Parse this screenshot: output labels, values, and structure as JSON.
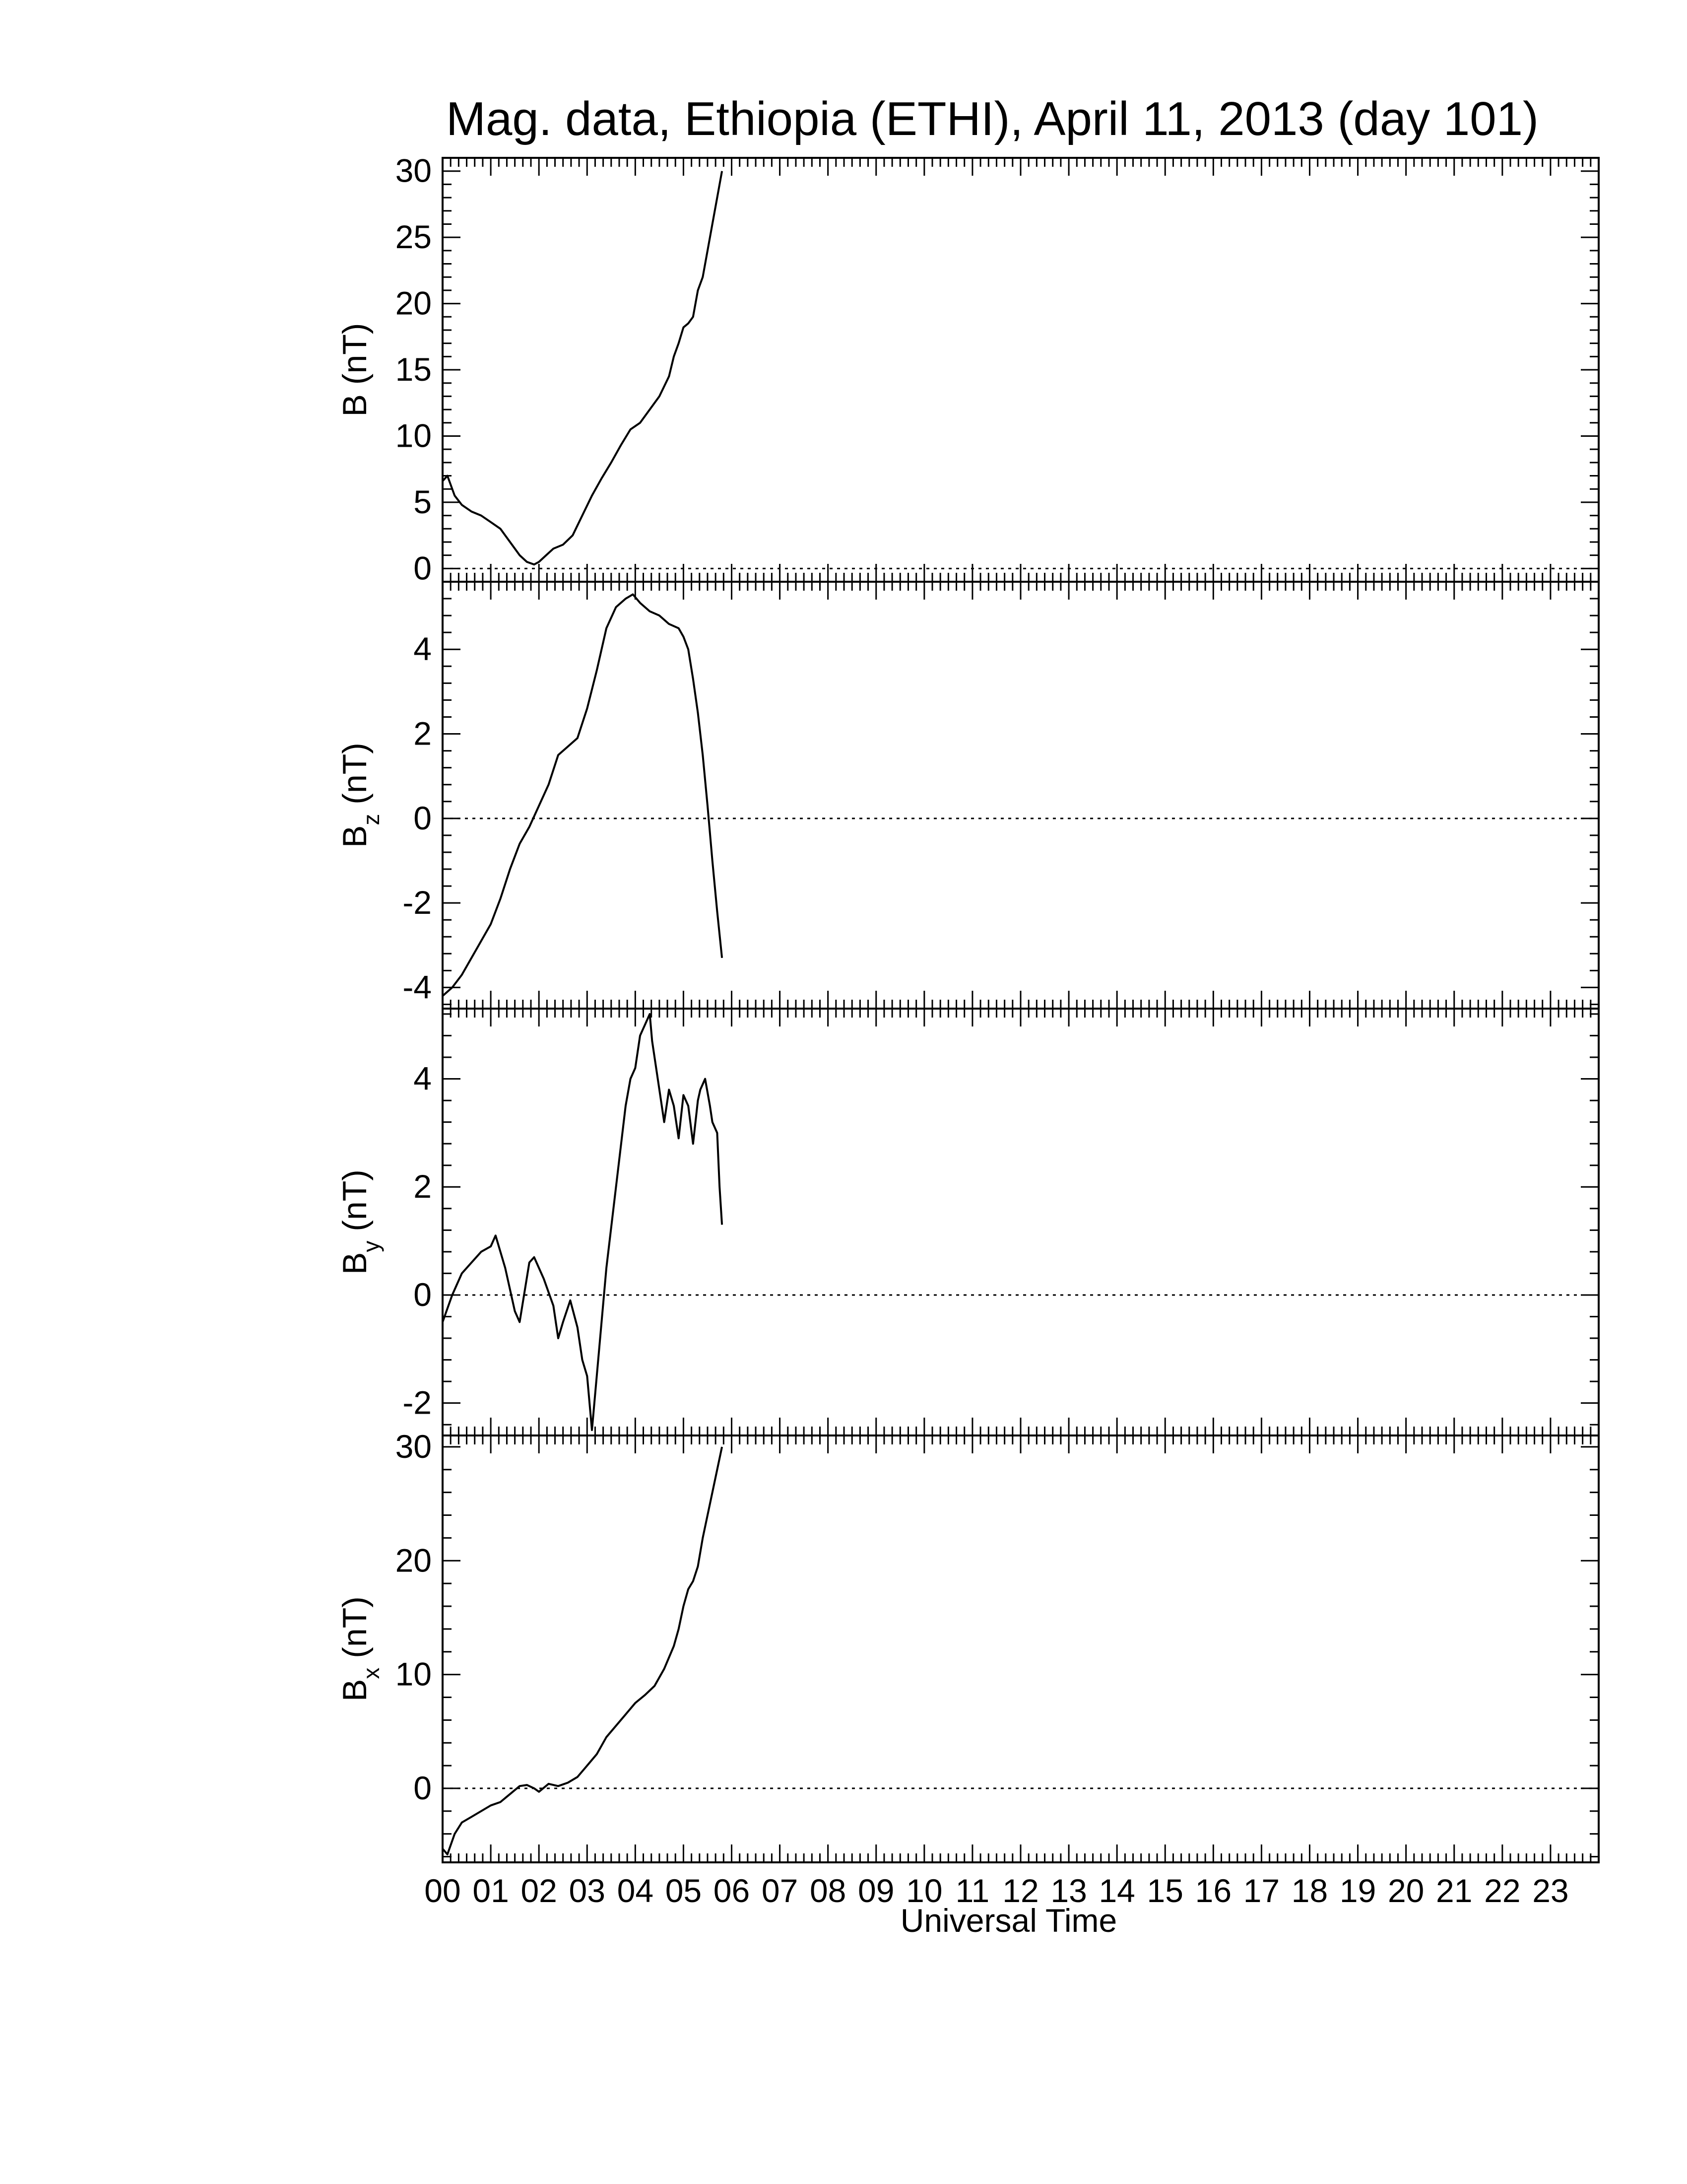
{
  "figure": {
    "title": "Mag. data, Ethiopia (ETHI), April 11, 2013 (day 101)",
    "xlabel": "Universal Time",
    "colors": {
      "line": "#000000",
      "frame": "#000000",
      "zero_line": "#000000",
      "background": "#ffffff"
    }
  },
  "chart_data": [
    {
      "type": "line",
      "panel": "B",
      "ylabel_main": "B",
      "ylabel_sub": "",
      "ylabel_unit": "(nT)",
      "xlim": [
        0,
        24
      ],
      "ylim": [
        -1,
        31
      ],
      "yticks": [
        0,
        5,
        10,
        15,
        20,
        25,
        30
      ],
      "zero_line": true,
      "series": [
        {
          "x": [
            0.0,
            0.1,
            0.25,
            0.4,
            0.6,
            0.8,
            1.0,
            1.2,
            1.4,
            1.6,
            1.75,
            1.9,
            2.0,
            2.15,
            2.3,
            2.5,
            2.7,
            2.9,
            3.1,
            3.3,
            3.5,
            3.7,
            3.9,
            4.1,
            4.3,
            4.5,
            4.7,
            4.8,
            4.9,
            5.0,
            5.1,
            5.2,
            5.3,
            5.4,
            5.5,
            5.6,
            5.7,
            5.8
          ],
          "y": [
            6.6,
            7.0,
            5.5,
            4.8,
            4.3,
            4.0,
            3.5,
            3.0,
            2.0,
            1.0,
            0.5,
            0.3,
            0.5,
            1.0,
            1.5,
            1.8,
            2.5,
            4.0,
            5.5,
            6.8,
            8.0,
            9.3,
            10.5,
            11.0,
            12.0,
            13.0,
            14.5,
            16.0,
            17.0,
            18.2,
            18.5,
            19.0,
            21.0,
            22.0,
            24.0,
            26.0,
            28.0,
            30.0
          ]
        }
      ]
    },
    {
      "type": "line",
      "panel": "Bz",
      "ylabel_main": "B",
      "ylabel_sub": "z",
      "ylabel_unit": "(nT)",
      "xlim": [
        0,
        24
      ],
      "ylim": [
        -4.5,
        5.6
      ],
      "yticks": [
        -4,
        -2,
        0,
        2,
        4
      ],
      "zero_line": true,
      "series": [
        {
          "x": [
            0.0,
            0.2,
            0.4,
            0.6,
            0.8,
            1.0,
            1.2,
            1.4,
            1.6,
            1.8,
            2.0,
            2.2,
            2.4,
            2.6,
            2.8,
            3.0,
            3.2,
            3.4,
            3.6,
            3.8,
            3.95,
            4.1,
            4.3,
            4.5,
            4.7,
            4.9,
            5.0,
            5.1,
            5.2,
            5.3,
            5.4,
            5.5,
            5.6,
            5.7,
            5.8
          ],
          "y": [
            -4.2,
            -4.0,
            -3.7,
            -3.3,
            -2.9,
            -2.5,
            -1.9,
            -1.2,
            -0.6,
            -0.2,
            0.3,
            0.8,
            1.5,
            1.7,
            1.9,
            2.6,
            3.5,
            4.5,
            5.0,
            5.2,
            5.3,
            5.1,
            4.9,
            4.8,
            4.6,
            4.5,
            4.3,
            4.0,
            3.3,
            2.5,
            1.5,
            0.3,
            -1.0,
            -2.2,
            -3.3
          ]
        }
      ]
    },
    {
      "type": "line",
      "panel": "By",
      "ylabel_main": "B",
      "ylabel_sub": "y",
      "ylabel_unit": "(nT)",
      "xlim": [
        0,
        24
      ],
      "ylim": [
        -2.6,
        5.3
      ],
      "yticks": [
        -2,
        0,
        2,
        4
      ],
      "zero_line": true,
      "series": [
        {
          "x": [
            0.0,
            0.2,
            0.4,
            0.6,
            0.8,
            1.0,
            1.1,
            1.3,
            1.5,
            1.6,
            1.8,
            1.9,
            2.1,
            2.3,
            2.4,
            2.5,
            2.65,
            2.8,
            2.9,
            3.0,
            3.1,
            3.2,
            3.4,
            3.6,
            3.8,
            3.9,
            4.0,
            4.1,
            4.2,
            4.3,
            4.35,
            4.5,
            4.6,
            4.7,
            4.8,
            4.9,
            5.0,
            5.1,
            5.2,
            5.3,
            5.35,
            5.45,
            5.55,
            5.6,
            5.7,
            5.75,
            5.8
          ],
          "y": [
            -0.5,
            0.0,
            0.4,
            0.6,
            0.8,
            0.9,
            1.1,
            0.5,
            -0.3,
            -0.5,
            0.6,
            0.7,
            0.3,
            -0.2,
            -0.8,
            -0.5,
            -0.1,
            -0.6,
            -1.2,
            -1.5,
            -2.5,
            -1.5,
            0.5,
            2.0,
            3.5,
            4.0,
            4.2,
            4.8,
            5.0,
            5.2,
            4.7,
            3.8,
            3.2,
            3.8,
            3.5,
            2.9,
            3.7,
            3.5,
            2.8,
            3.6,
            3.8,
            4.0,
            3.5,
            3.2,
            3.0,
            2.0,
            1.3
          ]
        }
      ]
    },
    {
      "type": "line",
      "panel": "Bx",
      "ylabel_main": "B",
      "ylabel_sub": "x",
      "ylabel_unit": "(nT)",
      "xlim": [
        0,
        24
      ],
      "ylim": [
        -6.5,
        31
      ],
      "yticks": [
        0,
        10,
        20,
        30
      ],
      "zero_line": true,
      "series": [
        {
          "x": [
            0.0,
            0.1,
            0.25,
            0.4,
            0.6,
            0.8,
            1.0,
            1.2,
            1.4,
            1.6,
            1.75,
            1.9,
            2.0,
            2.2,
            2.4,
            2.6,
            2.8,
            3.0,
            3.2,
            3.4,
            3.6,
            3.8,
            4.0,
            4.2,
            4.4,
            4.6,
            4.7,
            4.8,
            4.9,
            5.0,
            5.1,
            5.2,
            5.3,
            5.4,
            5.5,
            5.6,
            5.7,
            5.8
          ],
          "y": [
            -5.3,
            -5.8,
            -4.0,
            -3.0,
            -2.5,
            -2.0,
            -1.5,
            -1.2,
            -0.5,
            0.2,
            0.3,
            0.0,
            -0.3,
            0.4,
            0.2,
            0.5,
            1.0,
            2.0,
            3.0,
            4.5,
            5.5,
            6.5,
            7.5,
            8.2,
            9.0,
            10.5,
            11.5,
            12.5,
            14.0,
            16.0,
            17.5,
            18.2,
            19.5,
            22.0,
            24.0,
            26.0,
            28.0,
            30.0
          ]
        }
      ]
    }
  ]
}
